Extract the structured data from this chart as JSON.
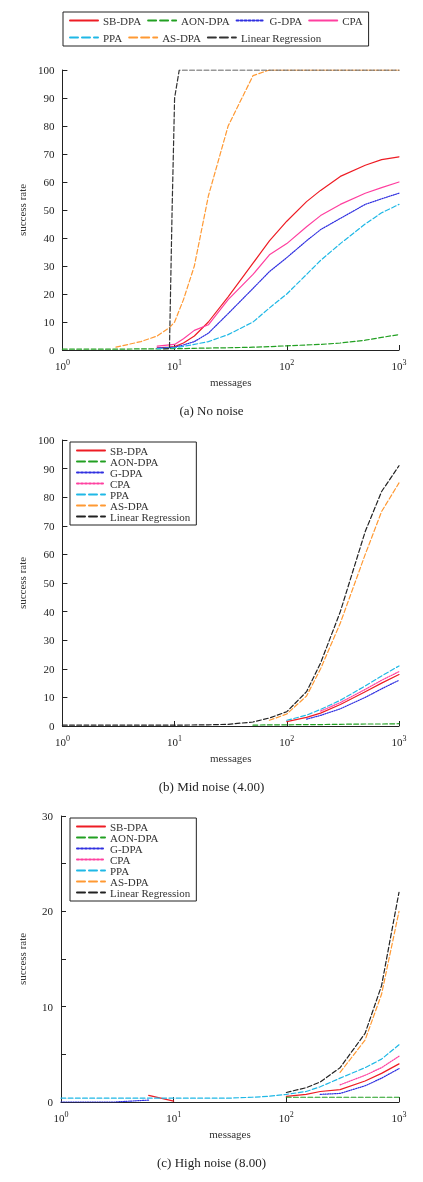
{
  "chart_data": [
    {
      "type": "line",
      "title": "(a) No noise",
      "xlabel": "messages",
      "ylabel": "success rate",
      "log": "x",
      "xlim": [
        1,
        1000
      ],
      "xticks": [
        {
          "value": 1,
          "label": "10$^{0}$"
        },
        {
          "value": 10,
          "label": "10$^{1}$"
        },
        {
          "value": 100,
          "label": "10$^{2}$"
        },
        {
          "value": 1000,
          "label": "10$^{3}$"
        }
      ],
      "ylim": [
        0,
        100
      ],
      "yticks": [
        0,
        10,
        20,
        30,
        40,
        50,
        60,
        70,
        80,
        90,
        100
      ],
      "legend": "top",
      "marker": "none",
      "grid": false,
      "x": [
        1,
        2,
        3,
        5,
        7,
        9,
        10,
        12,
        15,
        20,
        30,
        50,
        70,
        100,
        150,
        200,
        300,
        500,
        700,
        1000
      ],
      "series": [
        {
          "name": "SB-DPA",
          "color": "#ee1c24",
          "line_style": "solid",
          "values": [
            null,
            null,
            null,
            null,
            0.8,
            1,
            1.2,
            2.5,
            5,
            10,
            19,
            31,
            39,
            46,
            53,
            57,
            62,
            66,
            68,
            69
          ]
        },
        {
          "name": "AON-DPA",
          "color": "#22a022",
          "line_style": "dashed",
          "values": [
            0.3,
            0.3,
            0.3,
            0.4,
            0.4,
            0.5,
            0.5,
            0.5,
            0.6,
            0.7,
            0.8,
            1,
            1.2,
            1.5,
            1.8,
            2,
            2.5,
            3.5,
            4.5,
            5.5
          ]
        },
        {
          "name": "G-DPA",
          "color": "#2f2fe0",
          "line_style": "dotted",
          "values": [
            null,
            null,
            null,
            null,
            0.7,
            0.9,
            1,
            1.8,
            3,
            6,
            13,
            22,
            28,
            33,
            39,
            43,
            47,
            52,
            54,
            56
          ]
        },
        {
          "name": "CPA",
          "color": "#ff3f9f",
          "line_style": "solid",
          "values": [
            null,
            null,
            null,
            null,
            1.4,
            1.8,
            2,
            4,
            7,
            9,
            18,
            27,
            34,
            38,
            44,
            48,
            52,
            56,
            58,
            60
          ]
        },
        {
          "name": "PPA",
          "color": "#1fb8e6",
          "line_style": "dashed",
          "values": [
            null,
            null,
            null,
            null,
            0.5,
            0.7,
            0.8,
            1.3,
            2,
            3,
            5.5,
            10,
            15,
            20,
            27,
            32,
            38,
            45,
            49,
            52
          ]
        },
        {
          "name": "AS-DPA",
          "color": "#ff9933",
          "line_style": "dashed",
          "values": [
            null,
            null,
            1,
            3,
            5,
            8,
            10,
            18,
            30,
            55,
            80,
            98,
            100,
            100,
            100,
            100,
            100,
            100,
            100,
            100
          ]
        },
        {
          "name": "Linear Regression",
          "color": "#333333",
          "line_style": "dashed",
          "x": [
            8,
            9,
            9.5,
            10,
            11,
            12,
            20,
            50,
            100,
            300,
            1000
          ],
          "values": [
            0.4,
            0.5,
            50,
            90,
            100,
            100,
            100,
            100,
            100,
            100,
            100
          ]
        }
      ]
    },
    {
      "type": "line",
      "title": "(b) Mid noise (4.00)",
      "xlabel": "messages",
      "ylabel": "success rate",
      "log": "x",
      "xlim": [
        1,
        1000
      ],
      "xticks": [
        {
          "value": 1,
          "label": "10$^{0}$"
        },
        {
          "value": 10,
          "label": "10$^{1}$"
        },
        {
          "value": 100,
          "label": "10$^{2}$"
        },
        {
          "value": 1000,
          "label": "10$^{3}$"
        }
      ],
      "ylim": [
        0,
        100
      ],
      "yticks": [
        0,
        10,
        20,
        30,
        40,
        50,
        60,
        70,
        80,
        90,
        100
      ],
      "legend": "top left",
      "marker": "none",
      "grid": false,
      "x": [
        1,
        10,
        20,
        30,
        50,
        70,
        100,
        150,
        200,
        300,
        500,
        700,
        1000
      ],
      "series": [
        {
          "name": "SB-DPA",
          "color": "#ee1c24",
          "line_style": "solid",
          "values": [
            null,
            null,
            null,
            null,
            null,
            null,
            1.5,
            3,
            4.5,
            7.5,
            12,
            15,
            18
          ]
        },
        {
          "name": "AON-DPA",
          "color": "#22a022",
          "line_style": "dashed",
          "values": [
            null,
            null,
            null,
            null,
            0.3,
            0.4,
            0.4,
            0.5,
            0.5,
            0.6,
            0.7,
            0.7,
            0.8
          ]
        },
        {
          "name": "G-DPA",
          "color": "#2f2fe0",
          "line_style": "dotted",
          "values": [
            null,
            null,
            null,
            null,
            null,
            null,
            null,
            2.4,
            3.7,
            6,
            10,
            13,
            16
          ]
        },
        {
          "name": "CPA",
          "color": "#ff3f9f",
          "line_style": "dotted",
          "values": [
            null,
            null,
            null,
            null,
            null,
            null,
            null,
            null,
            5.2,
            8.2,
            12.8,
            16,
            19
          ]
        },
        {
          "name": "PPA",
          "color": "#1fb8e6",
          "line_style": "dashed",
          "values": [
            null,
            null,
            null,
            null,
            null,
            null,
            2,
            3.8,
            5.8,
            9,
            14,
            17.5,
            21
          ]
        },
        {
          "name": "AS-DPA",
          "color": "#ff9933",
          "line_style": "dashed",
          "values": [
            null,
            null,
            null,
            null,
            null,
            2,
            4.2,
            10.5,
            20,
            36,
            60,
            75,
            85
          ]
        },
        {
          "name": "Linear Regression",
          "color": "#222222",
          "line_style": "dashed",
          "values": [
            0.3,
            0.3,
            0.4,
            0.6,
            1.4,
            2.8,
            5,
            12,
            22,
            40,
            68,
            82,
            91
          ]
        }
      ]
    },
    {
      "type": "line",
      "title": "(c) High noise (8.00)",
      "xlabel": "messages",
      "ylabel": "success rate",
      "log": "x",
      "xlim": [
        1,
        1000
      ],
      "xticks": [
        {
          "value": 1,
          "label": "10$^{0}$"
        },
        {
          "value": 10,
          "label": "10$^{1}$"
        },
        {
          "value": 100,
          "label": "10$^{2}$"
        },
        {
          "value": 1000,
          "label": "10$^{3}$"
        }
      ],
      "ylim": [
        0,
        30
      ],
      "yticks": [
        0,
        {
          "value": 5,
          "label": null
        },
        10,
        {
          "value": 15,
          "label": null
        },
        20,
        {
          "value": 25,
          "label": null
        },
        30
      ],
      "legend": "top left",
      "marker": "none",
      "grid": false,
      "x": [
        1,
        3,
        6,
        10,
        20,
        30,
        50,
        70,
        100,
        150,
        200,
        300,
        500,
        700,
        1000
      ],
      "series": [
        {
          "name": "SB-DPA",
          "color": "#ee1c24",
          "line_style": "solid",
          "values": [
            null,
            null,
            0.7,
            0.1,
            null,
            null,
            null,
            null,
            0.6,
            0.8,
            1.1,
            1.3,
            2.2,
            3,
            4
          ]
        },
        {
          "name": "AON-DPA",
          "color": "#22a022",
          "line_style": "dashed",
          "values": [
            null,
            null,
            null,
            null,
            null,
            null,
            null,
            null,
            0.5,
            0.5,
            0.5,
            0.5,
            0.5,
            0.5,
            0.5
          ]
        },
        {
          "name": "G-DPA",
          "color": "#2f2fe0",
          "line_style": "dotted",
          "values": [
            0,
            0,
            0.2,
            null,
            null,
            null,
            null,
            null,
            null,
            null,
            0.8,
            0.9,
            1.7,
            2.5,
            3.5
          ]
        },
        {
          "name": "CPA",
          "color": "#ff3f9f",
          "line_style": "dotted",
          "values": [
            null,
            null,
            null,
            null,
            null,
            null,
            null,
            null,
            null,
            null,
            null,
            1.8,
            2.8,
            3.6,
            4.8
          ]
        },
        {
          "name": "PPA",
          "color": "#1fb8e6",
          "line_style": "dashed",
          "values": [
            0.4,
            0.4,
            0.4,
            0.4,
            0.4,
            0.4,
            0.5,
            0.6,
            0.8,
            1.1,
            1.6,
            2.5,
            3.6,
            4.5,
            6
          ]
        },
        {
          "name": "AS-DPA",
          "color": "#ff9933",
          "line_style": "dashed",
          "values": [
            null,
            null,
            null,
            null,
            null,
            null,
            null,
            null,
            null,
            null,
            null,
            3.1,
            6.5,
            11.3,
            20
          ]
        },
        {
          "name": "Linear Regression",
          "color": "#222222",
          "line_style": "dashed",
          "values": [
            null,
            null,
            null,
            null,
            null,
            null,
            null,
            null,
            1,
            1.5,
            2.1,
            3.6,
            7.2,
            12.2,
            22
          ]
        }
      ]
    }
  ]
}
